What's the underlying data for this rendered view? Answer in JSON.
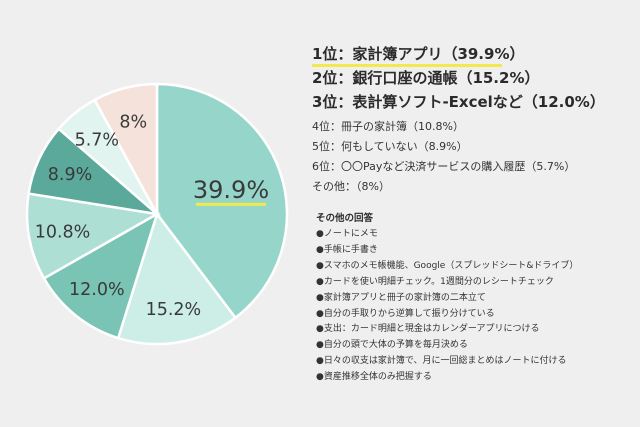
{
  "chart_data": {
    "type": "pie",
    "start_angle_deg": 0,
    "direction": "clockwise",
    "slices": [
      {
        "label": "39.9%",
        "value": 39.9,
        "color": "#96d6ca",
        "highlight": true
      },
      {
        "label": "15.2%",
        "value": 15.2,
        "color": "#cdeee6"
      },
      {
        "label": "12.0%",
        "value": 12.0,
        "color": "#79c4b4"
      },
      {
        "label": "10.8%",
        "value": 10.8,
        "color": "#addfd5"
      },
      {
        "label": "8.9%",
        "value": 8.9,
        "color": "#5aa99b"
      },
      {
        "label": "5.7%",
        "value": 5.7,
        "color": "#e2f4f0"
      },
      {
        "label": "8%",
        "value": 8.0,
        "color": "#f5e2da"
      }
    ],
    "highlight_color": "#f2e94e"
  },
  "legend": {
    "top": [
      "1位：家計簿アプリ（39.9%）",
      "2位：銀行口座の通帳（15.2%）",
      "3位：表計算ソフト-Excelなど（12.0%）"
    ],
    "rest": [
      "4位：冊子の家計簿（10.8%）",
      "5位：何もしていない（8.9%）",
      "6位：〇〇Payなど決済サービスの購入履歴（5.7%）",
      "その他：（8%）"
    ]
  },
  "others": {
    "title": "その他の回答",
    "items": [
      "●ノートにメモ",
      "●手帳に手書き",
      "●スマホのメモ帳機能、Google（スプレッドシート&ドライブ）",
      "●カードを使い明細チェック。1週間分のレシートチェック",
      "●家計簿アプリと冊子の家計簿の二本立て",
      "●自分の手取りから逆算して振り分けている",
      "●支出：カード明細と現金はカレンダーアプリにつける",
      "●自分の頭で大体の予算を毎月決める",
      "●日々の収支は家計簿で、月に一回総まとめはノートに付ける",
      "●資産推移全体のみ把握する"
    ]
  }
}
